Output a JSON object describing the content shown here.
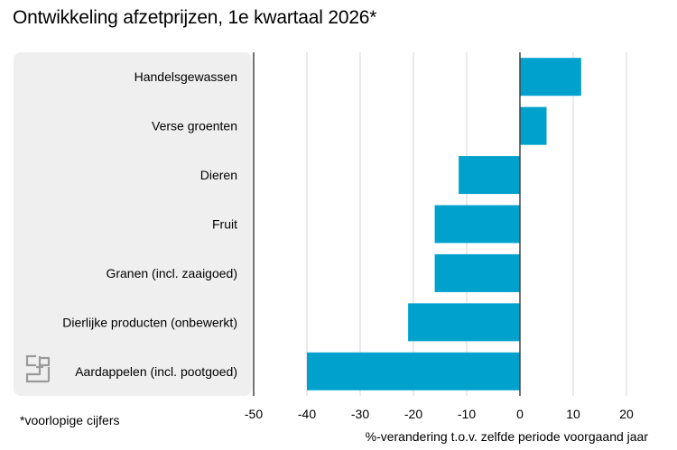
{
  "title": "Ontwikkeling afzetprijzen, 1e kwartaal 2026*",
  "footnote": "*voorlopige cijfers",
  "colors": {
    "bar": "#00a1cd",
    "grid": "#d6d6d6",
    "panel": "#efefef",
    "logo": "#9a9a9a"
  },
  "chart_data": {
    "type": "bar",
    "orientation": "horizontal",
    "title": "Ontwikkeling afzetprijzen, 1e kwartaal 2026*",
    "xlabel": "%-verandering t.o.v. zelfde periode voorgaand jaar",
    "ylabel": "",
    "categories": [
      "Handelsgewassen",
      "Verse groenten",
      "Dieren",
      "Fruit",
      "Granen (incl. zaaigoed)",
      "Dierlijke producten (onbewerkt)",
      "Aardappelen (incl. pootgoed)"
    ],
    "values": [
      11.5,
      5.0,
      -11.5,
      -16.0,
      -16.0,
      -21.0,
      -40.0
    ],
    "xlim": [
      -50,
      20
    ],
    "xticks": [
      "-50",
      "-40",
      "-30",
      "-20",
      "-10",
      "0",
      "10",
      "20"
    ],
    "grid": true,
    "legend": "none"
  }
}
